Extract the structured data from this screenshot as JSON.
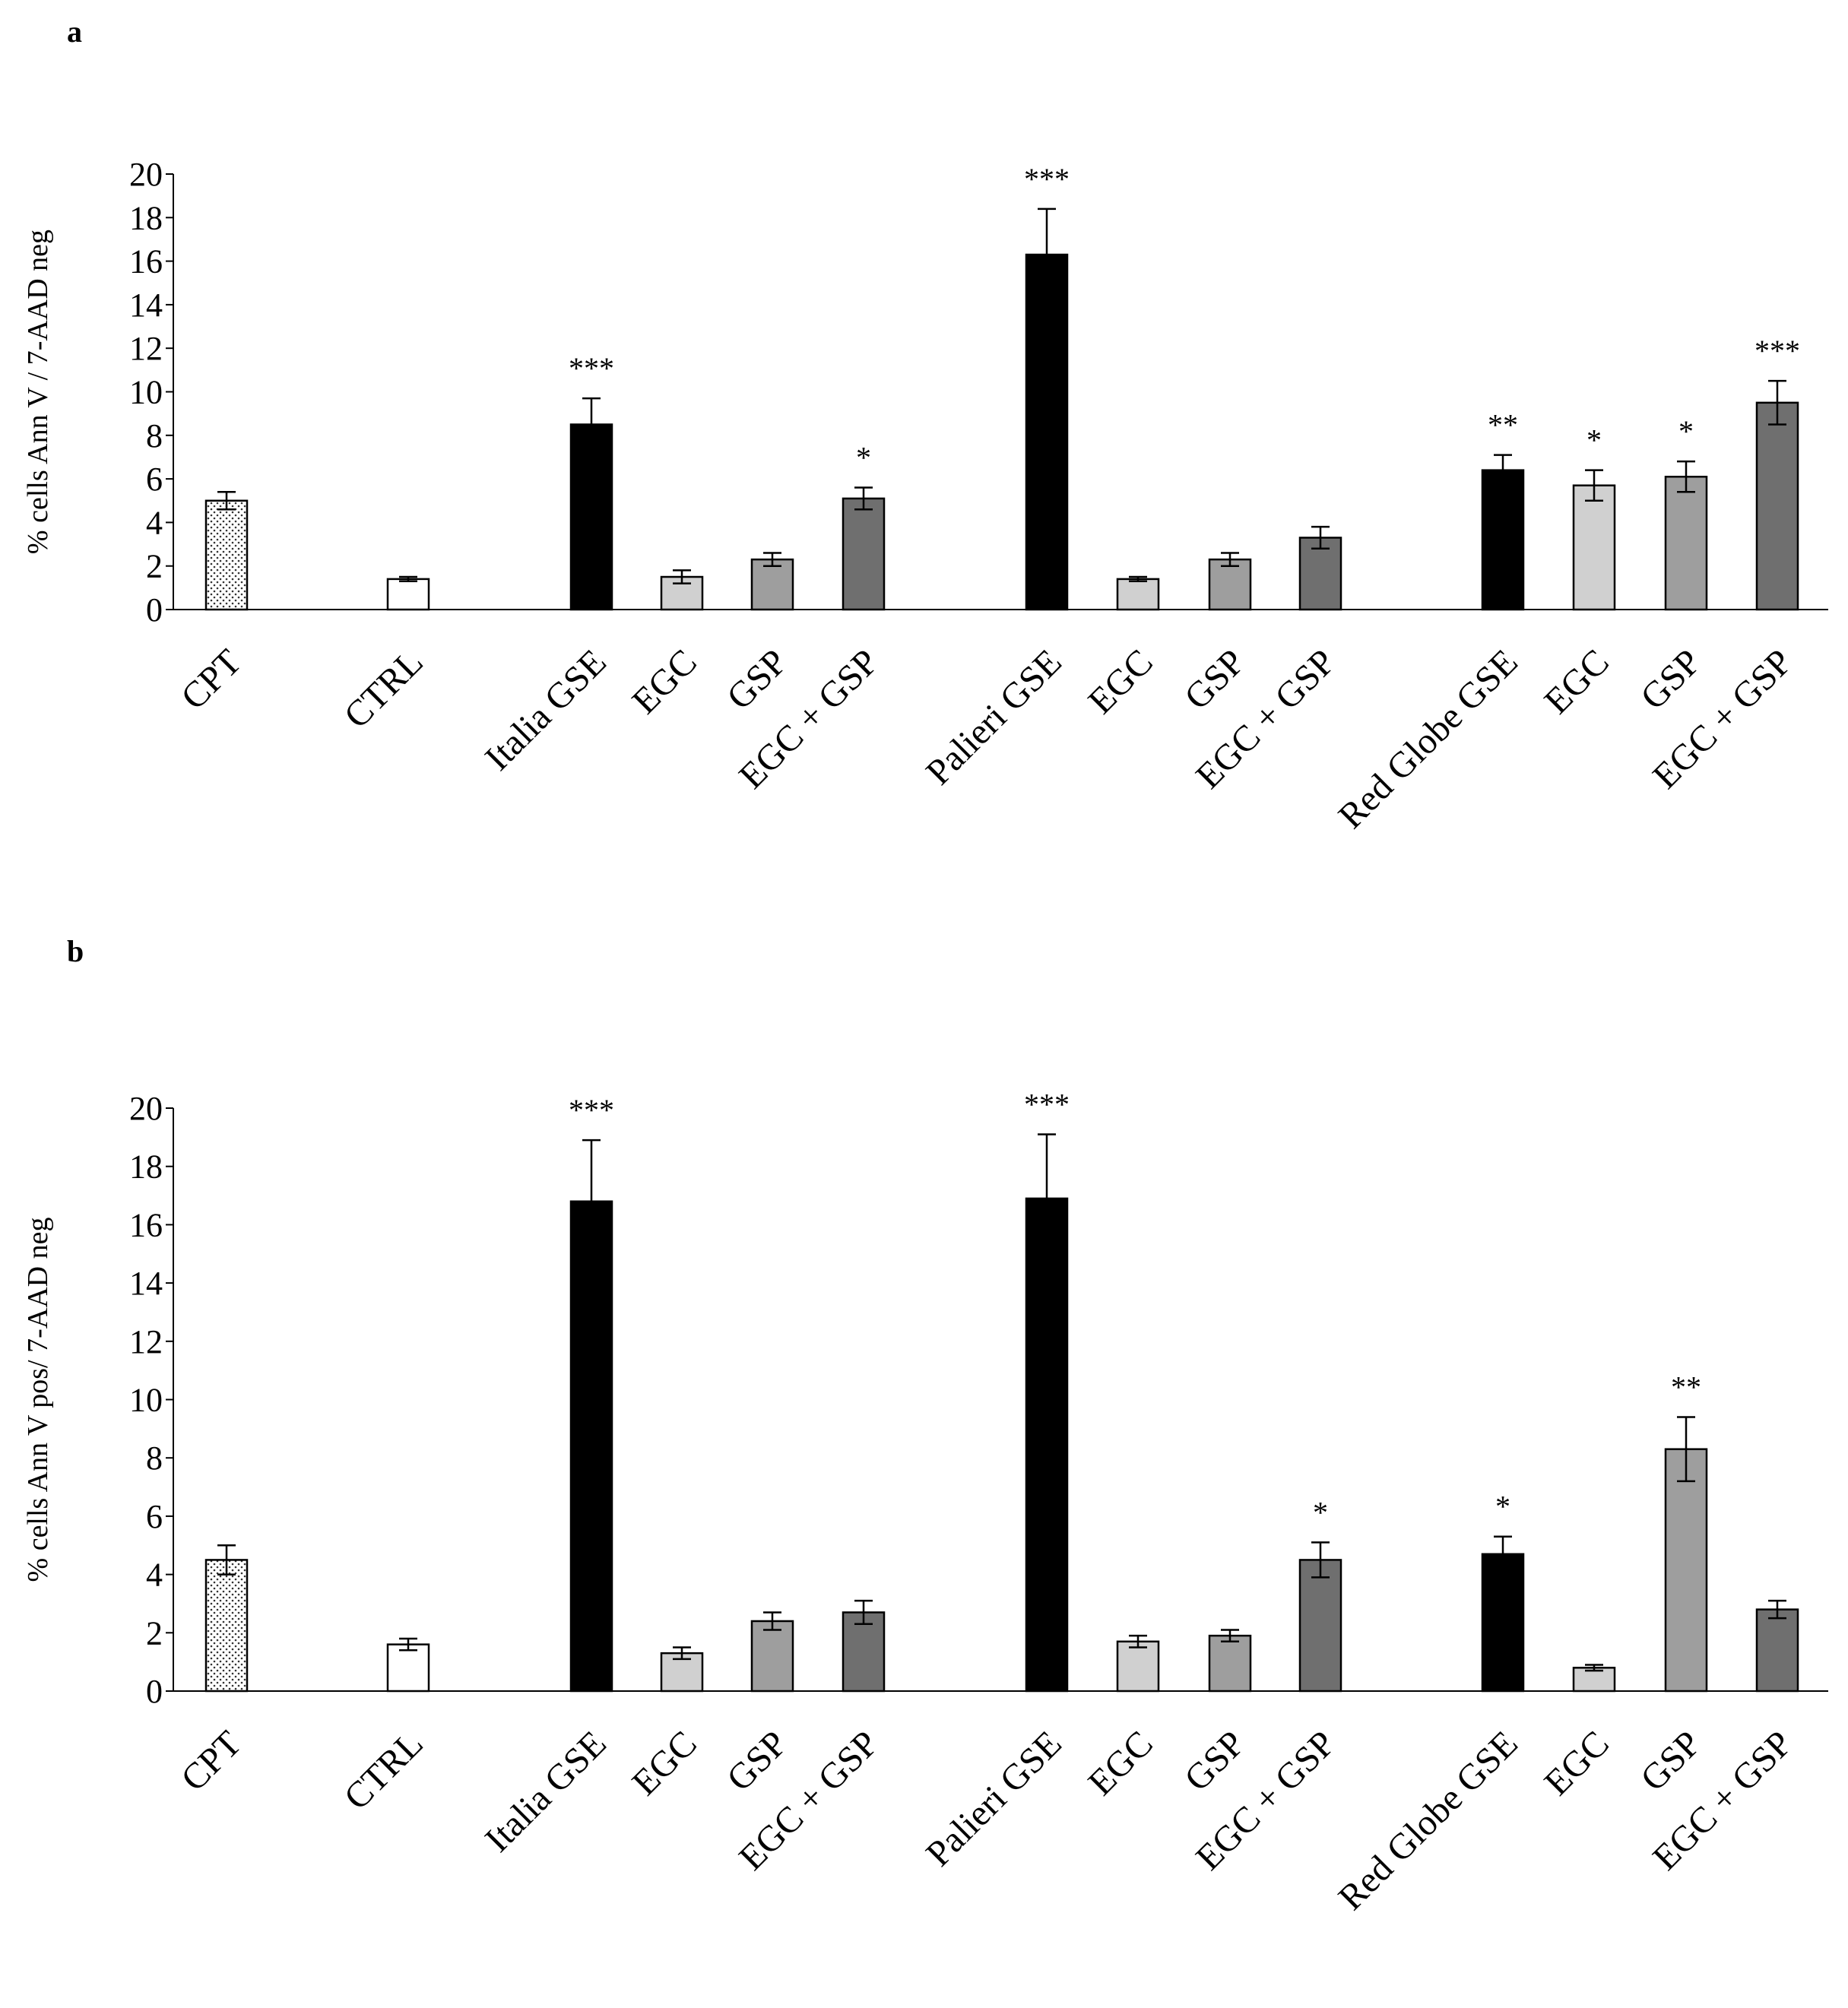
{
  "chart_data": [
    {
      "type": "bar",
      "panel_label": "a",
      "ylabel": "% cells Ann V / 7-AAD neg",
      "ylim": [
        0,
        20
      ],
      "yticks": [
        "0",
        "2",
        "4",
        "6",
        "8",
        "10",
        "12",
        "14",
        "16",
        "18",
        "20"
      ],
      "categories": [
        "CPT",
        "CTRL",
        "Italia GSE",
        "EGC",
        "GSP",
        "EGC + GSP",
        "Palieri GSE",
        "EGC",
        "GSP",
        "EGC + GSP",
        "Red Globe GSE",
        "EGC",
        "GSP",
        "EGC + GSP"
      ],
      "values": [
        5.0,
        1.4,
        8.5,
        1.5,
        2.3,
        5.1,
        16.3,
        1.4,
        2.3,
        3.3,
        6.4,
        5.7,
        6.1,
        9.5
      ],
      "errors": [
        0.4,
        0.1,
        1.2,
        0.3,
        0.3,
        0.5,
        2.1,
        0.1,
        0.3,
        0.5,
        0.7,
        0.7,
        0.7,
        1.0
      ],
      "significance": [
        "",
        "",
        "***",
        "",
        "",
        "*",
        "***",
        "",
        "",
        "",
        "**",
        "*",
        "*",
        "***"
      ],
      "fills": [
        "dotted",
        "#ffffff",
        "#000000",
        "#d0d0d0",
        "#9e9e9e",
        "#6f6f6f",
        "#000000",
        "#d0d0d0",
        "#9e9e9e",
        "#6f6f6f",
        "#000000",
        "#d0d0d0",
        "#9e9e9e",
        "#6f6f6f"
      ]
    },
    {
      "type": "bar",
      "panel_label": "b",
      "ylabel": "% cells Ann V  pos/ 7-AAD neg",
      "ylim": [
        0,
        20
      ],
      "yticks": [
        "0",
        "2",
        "4",
        "6",
        "8",
        "10",
        "12",
        "14",
        "16",
        "18",
        "20"
      ],
      "categories": [
        "CPT",
        "CTRL",
        "Italia GSE",
        "EGC",
        "GSP",
        "EGC + GSP",
        "Palieri GSE",
        "EGC",
        "GSP",
        "EGC + GSP",
        "Red Globe GSE",
        "EGC",
        "GSP",
        "EGC + GSP"
      ],
      "values": [
        4.5,
        1.6,
        16.8,
        1.3,
        2.4,
        2.7,
        16.9,
        1.7,
        1.9,
        4.5,
        4.7,
        0.8,
        8.3,
        2.8
      ],
      "errors": [
        0.5,
        0.2,
        2.1,
        0.2,
        0.3,
        0.4,
        2.2,
        0.2,
        0.2,
        0.6,
        0.6,
        0.1,
        1.1,
        0.3
      ],
      "significance": [
        "",
        "",
        "***",
        "",
        "",
        "",
        "***",
        "",
        "",
        "*",
        "*",
        "",
        "**",
        ""
      ],
      "fills": [
        "dotted",
        "#ffffff",
        "#000000",
        "#d0d0d0",
        "#9e9e9e",
        "#6f6f6f",
        "#000000",
        "#d0d0d0",
        "#9e9e9e",
        "#6f6f6f",
        "#000000",
        "#d0d0d0",
        "#9e9e9e",
        "#6f6f6f"
      ]
    }
  ]
}
